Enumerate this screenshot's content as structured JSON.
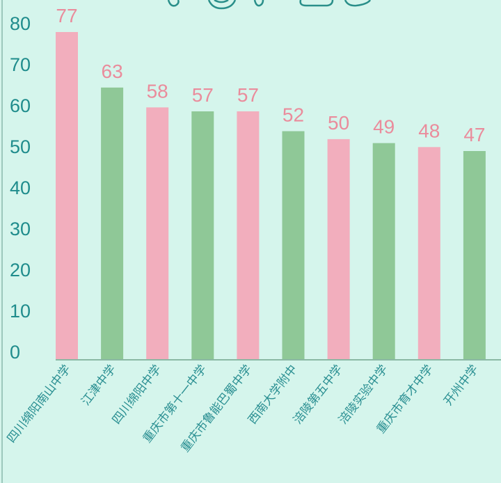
{
  "chart_data": {
    "type": "bar",
    "categories": [
      "四川绵阳南山中学",
      "江津中学",
      "四川绵阳中学",
      "重庆市第十一中学",
      "重庆市鲁能巴蜀中学",
      "西南大学附中",
      "涪陵第五中学",
      "涪陵实验中学",
      "重庆市育才中学",
      "开州中学"
    ],
    "values": [
      77,
      63,
      58,
      57,
      57,
      52,
      50,
      49,
      48,
      47
    ],
    "yticks": [
      "0",
      "10",
      "20",
      "30",
      "40",
      "50",
      "60",
      "70",
      "80"
    ],
    "ylim": [
      0,
      80
    ],
    "grid": false,
    "colors": [
      "#f2aebd",
      "#8fc897"
    ],
    "background": "#d5f5ec"
  }
}
